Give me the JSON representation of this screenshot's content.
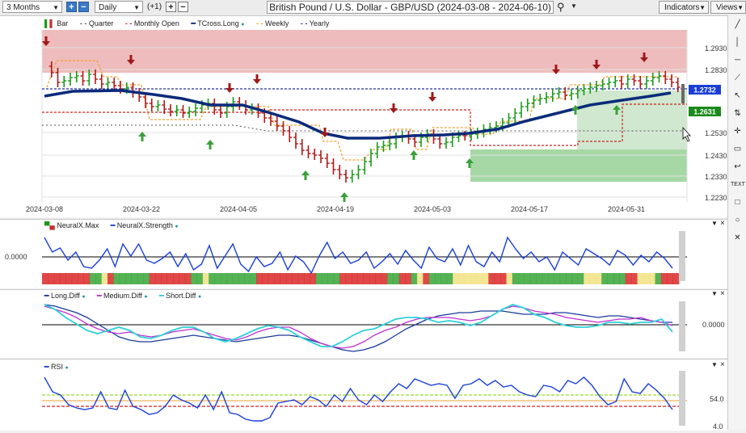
{
  "toolbar": {
    "period": "3 Months",
    "interval": "Daily",
    "offset": "(+1)",
    "title": "British Pound / U.S. Dollar - GBP/USD (2024-03-08 - 2024-06-10)",
    "indicators_label": "Indicators",
    "views_label": "Views"
  },
  "price_panel": {
    "legend": [
      "Bar",
      "Quarter",
      "Monthly Open",
      "TCross.Long",
      "Weekly",
      "Yearly"
    ],
    "legend_colors": [
      "#c03030",
      "#555555",
      "#d02020",
      "#0a2a7a",
      "#f0a030",
      "#2030a0"
    ],
    "y_ticks": [
      "1.2930",
      "1.2830",
      "1.2732",
      "1.2631",
      "1.2530",
      "1.2430",
      "1.2330",
      "1.2230"
    ],
    "price_tag_blue": "1.2732",
    "price_tag_green": "1.2631",
    "x_ticks": [
      "2024-03-08",
      "2024-03-22",
      "2024-04-05",
      "2024-04-19",
      "2024-05-03",
      "2024-05-17",
      "2024-05-31"
    ]
  },
  "neural_panel": {
    "legend": [
      "NeuralX.Max",
      "NeuralX.Strength"
    ],
    "zero_label": "0.0000",
    "strength_color": "#1a3fd8"
  },
  "diff_panel": {
    "legend": [
      "Long.Diff",
      "Medium.Diff",
      "Short.Diff"
    ],
    "colors": [
      "#1a3a9a",
      "#c030d0",
      "#30d0d8"
    ],
    "zero_label": "0.0000"
  },
  "rsi_panel": {
    "legend": [
      "RSI"
    ],
    "label_54": "54.0",
    "label_4": "4.0"
  },
  "colors": {
    "bull": "#1a9a1a",
    "bear": "#b01818",
    "band_green": "#2aa02a",
    "band_red": "#d81a1a",
    "band_yellow": "#f0e07a"
  },
  "sidebar_icons": [
    "line-tool-icon",
    "vertical-line-icon",
    "horizontal-line-icon",
    "ray-icon",
    "cursor-icon",
    "crosshair-icon",
    "fib-icon",
    "arrow-icon",
    "text-icon",
    "rectangle-icon",
    "circle-icon",
    "close-icon"
  ]
}
